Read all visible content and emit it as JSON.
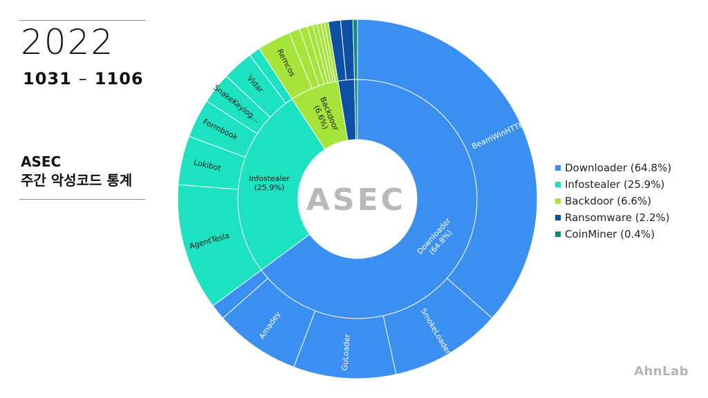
{
  "header": {
    "year": "2022",
    "range_start": "1031",
    "range_sep": "–",
    "range_end": "1106",
    "title_line1": "ASEC",
    "title_line2": "주간 악성코드 통계"
  },
  "center_logo": "ASEC",
  "brand": "AhnLab",
  "colors": {
    "Downloader": "#3a8ff0",
    "Infostealer": "#1de2c1",
    "Backdoor": "#a6e43c",
    "Ransomware": "#0e4fa6",
    "CoinMiner": "#0f8a78"
  },
  "chart_data": {
    "type": "sunburst",
    "start_angle_deg": 0,
    "direction": "clockwise",
    "legend_position": "right",
    "inner": [
      {
        "name": "Downloader",
        "label": "Downloader",
        "pct_label": "(64.8%)",
        "value": 64.8
      },
      {
        "name": "Infostealer",
        "label": "Infostealer",
        "pct_label": "(25.9%)",
        "value": 25.9
      },
      {
        "name": "Backdoor",
        "label": "Backdoor",
        "pct_label": "(6.6%)",
        "value": 6.6
      },
      {
        "name": "Ransomware",
        "label": "",
        "pct_label": "",
        "value": 2.2
      },
      {
        "name": "CoinMiner",
        "label": "",
        "pct_label": "",
        "value": 0.4
      }
    ],
    "outer": [
      {
        "name": "BeamWinHTTP",
        "parent": "Downloader",
        "value": 36.5
      },
      {
        "name": "SmokeLoader",
        "parent": "Downloader",
        "value": 10.0
      },
      {
        "name": "GuLoader",
        "parent": "Downloader",
        "value": 9.2
      },
      {
        "name": "Amadey",
        "parent": "Downloader",
        "value": 7.7
      },
      {
        "name": "",
        "parent": "Downloader",
        "value": 1.4
      },
      {
        "name": "AgentTesla",
        "parent": "Infostealer",
        "value": 11.4
      },
      {
        "name": "Lokibot",
        "parent": "Infostealer",
        "value": 4.4
      },
      {
        "name": "Formbook",
        "parent": "Infostealer",
        "value": 3.5
      },
      {
        "name": "SnakeKeylog…",
        "parent": "Infostealer",
        "value": 2.8
      },
      {
        "name": "Vidar",
        "parent": "Infostealer",
        "value": 2.8
      },
      {
        "name": "",
        "parent": "Infostealer",
        "value": 1.0
      },
      {
        "name": "Remcos",
        "parent": "Backdoor",
        "value": 3.0
      },
      {
        "name": "",
        "parent": "Backdoor",
        "value": 1.0
      },
      {
        "name": "",
        "parent": "Backdoor",
        "value": 0.7
      },
      {
        "name": "",
        "parent": "Backdoor",
        "value": 0.5
      },
      {
        "name": "",
        "parent": "Backdoor",
        "value": 0.4
      },
      {
        "name": "",
        "parent": "Backdoor",
        "value": 0.35
      },
      {
        "name": "",
        "parent": "Backdoor",
        "value": 0.3
      },
      {
        "name": "",
        "parent": "Backdoor",
        "value": 0.35
      },
      {
        "name": "",
        "parent": "Ransomware",
        "value": 1.1
      },
      {
        "name": "",
        "parent": "Ransomware",
        "value": 1.1
      },
      {
        "name": "",
        "parent": "CoinMiner",
        "value": 0.4
      }
    ],
    "legend": [
      {
        "name": "Downloader",
        "label": "Downloader (64.8%)"
      },
      {
        "name": "Infostealer",
        "label": "Infostealer (25.9%)"
      },
      {
        "name": "Backdoor",
        "label": "Backdoor (6.6%)"
      },
      {
        "name": "Ransomware",
        "label": "Ransomware (2.2%)"
      },
      {
        "name": "CoinMiner",
        "label": "CoinMiner (0.4%)"
      }
    ]
  }
}
